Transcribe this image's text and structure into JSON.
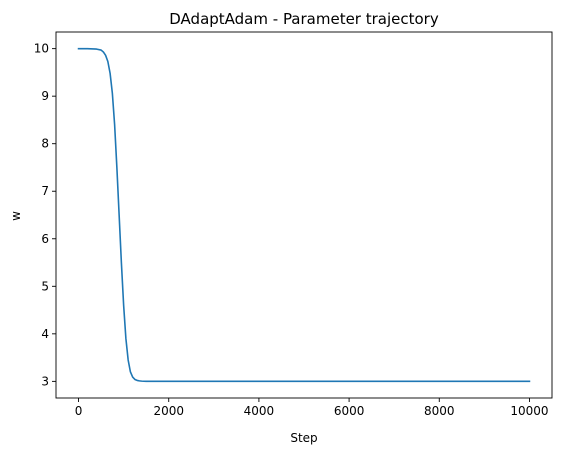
{
  "chart_data": {
    "type": "line",
    "title": "DAdaptAdam - Parameter trajectory",
    "xlabel": "Step",
    "ylabel": "w",
    "xlim": [
      -500,
      10500
    ],
    "ylim": [
      2.65,
      10.35
    ],
    "xticks": [
      0,
      2000,
      4000,
      6000,
      8000,
      10000
    ],
    "yticks": [
      3,
      4,
      5,
      6,
      7,
      8,
      9,
      10
    ],
    "grid": false,
    "legend": "none",
    "series": [
      {
        "color": "#1f77b4",
        "x": [
          0,
          200,
          400,
          500,
          550,
          600,
          650,
          700,
          750,
          800,
          850,
          900,
          950,
          1000,
          1050,
          1100,
          1150,
          1200,
          1250,
          1300,
          1350,
          1400,
          1500,
          1600,
          2000,
          4000,
          6000,
          8000,
          10000
        ],
        "y": [
          10.0,
          10.0,
          9.99,
          9.97,
          9.93,
          9.86,
          9.73,
          9.48,
          9.06,
          8.4,
          7.5,
          6.5,
          5.5,
          4.6,
          3.9,
          3.45,
          3.2,
          3.09,
          3.04,
          3.02,
          3.01,
          3.005,
          3.0,
          3.0,
          3.0,
          3.0,
          3.0,
          3.0,
          3.0
        ]
      }
    ]
  }
}
